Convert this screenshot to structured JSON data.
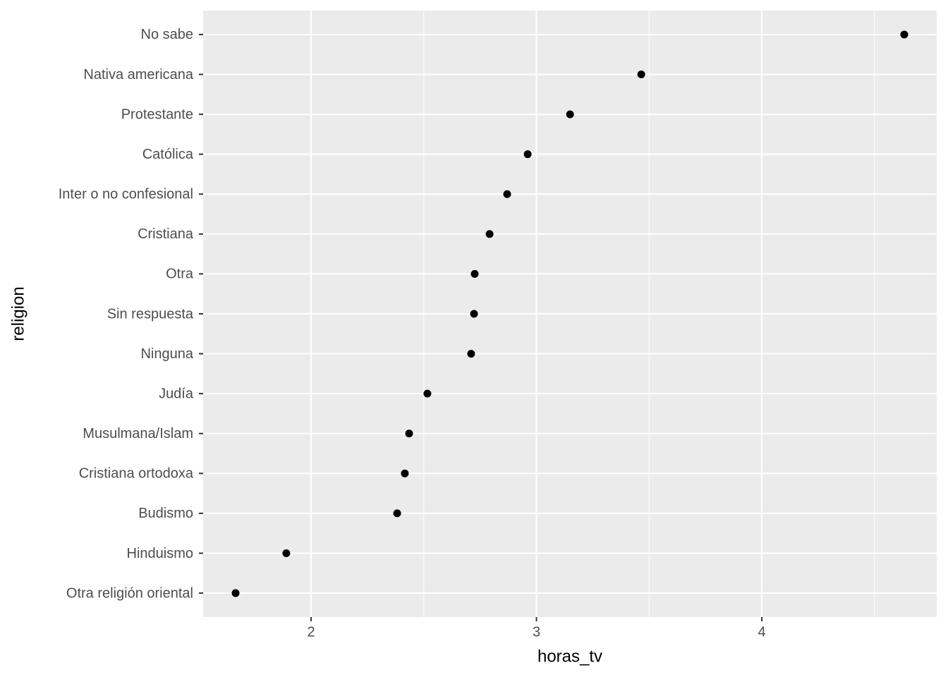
{
  "chart_data": {
    "type": "scatter",
    "xlabel": "horas_tv",
    "ylabel": "religion",
    "categories": [
      "No sabe",
      "Nativa americana",
      "Protestante",
      "Católica",
      "Inter o no confesional",
      "Cristiana",
      "Otra",
      "Sin respuesta",
      "Ninguna",
      "Judía",
      "Musulmana/Islam",
      "Cristiana ortodoxa",
      "Budismo",
      "Hinduismo",
      "Otra religión oriental"
    ],
    "values": [
      4.632,
      3.465,
      3.149,
      2.961,
      2.87,
      2.792,
      2.726,
      2.723,
      2.71,
      2.516,
      2.435,
      2.416,
      2.382,
      1.89,
      1.665
    ],
    "color": "#000000",
    "xlim": [
      1.521,
      4.776
    ],
    "xticks": [
      2,
      3,
      4
    ],
    "xminor": [
      2.5,
      3.5,
      4.5
    ],
    "grid": true
  }
}
